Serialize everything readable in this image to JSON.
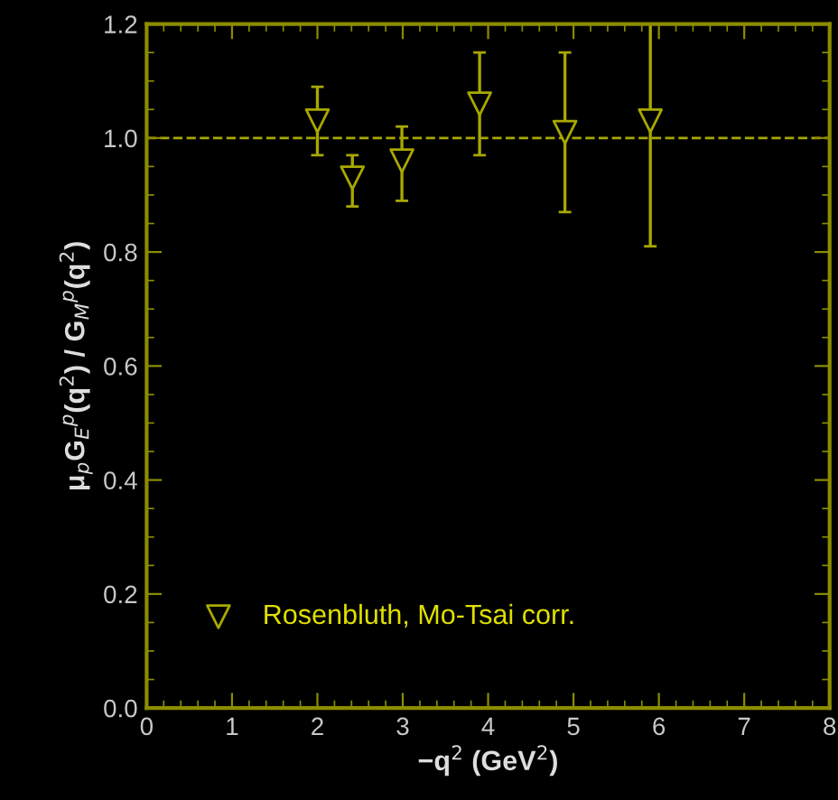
{
  "chart_data": {
    "type": "scatter",
    "xlabel": "−q$^{2}$ (GeV$^{2}$)",
    "ylabel": "μ$_{p}$G$_{E}$$^{p}$(q$^{2}$) / G$_{M}$$^{p}$(q$^{2}$)",
    "x": [
      2.0,
      2.41,
      2.99,
      3.9,
      4.9,
      5.9
    ],
    "series": [
      {
        "name": "Rosenbluth, Mo-Tsai corr.",
        "color": "#a8a800",
        "values": [
          1.03,
          0.93,
          0.96,
          1.06,
          1.01,
          1.03
        ],
        "errors": [
          [
            0.97,
            1.09
          ],
          [
            0.88,
            0.97
          ],
          [
            0.89,
            1.02
          ],
          [
            0.97,
            1.15
          ],
          [
            0.87,
            1.15
          ],
          [
            0.81,
            1.2
          ]
        ]
      }
    ],
    "xlim": [
      0,
      8
    ],
    "ylim": [
      0,
      1.2
    ],
    "xticks": [
      0,
      1,
      2,
      3,
      4,
      5,
      6,
      7,
      8
    ],
    "yticks": [
      {
        "value": 0,
        "label": "0.0"
      },
      0.2,
      0.4,
      0.6,
      0.8,
      {
        "value": 1,
        "label": "1.0"
      },
      1.2
    ],
    "ref_lines": [
      {
        "axis": "y",
        "value": 1,
        "color": "#a8a800",
        "line_style": "dashed"
      }
    ],
    "marker": "triangle",
    "legend": "bottom left",
    "grid": false
  }
}
